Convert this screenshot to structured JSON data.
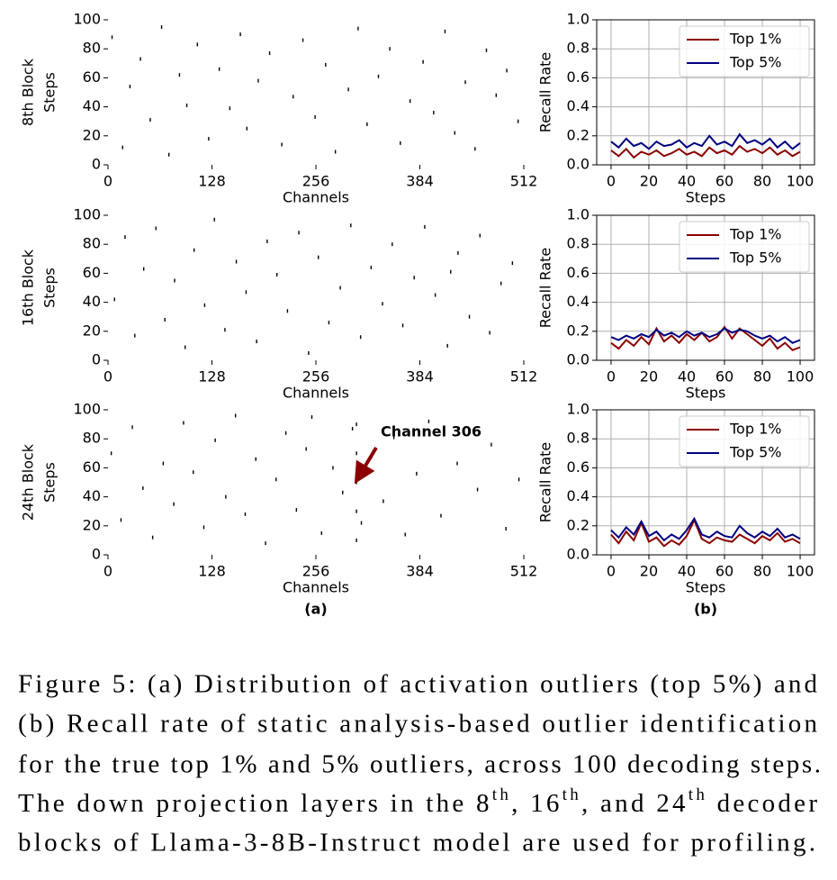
{
  "chart_data": [
    {
      "type": "scatter",
      "row_label": "8th Block",
      "ylabel": "Steps",
      "xlabel": "Channels",
      "color": "#000000",
      "x": [
        5,
        18,
        27,
        40,
        52,
        66,
        75,
        88,
        97,
        110,
        124,
        137,
        150,
        163,
        171,
        185,
        199,
        214,
        228,
        240,
        255,
        268,
        280,
        296,
        308,
        319,
        333,
        347,
        360,
        372,
        388,
        401,
        415,
        427,
        440,
        452,
        466,
        478,
        491,
        505
      ],
      "y": [
        88,
        12,
        54,
        73,
        31,
        95,
        7,
        62,
        41,
        83,
        18,
        66,
        39,
        90,
        25,
        58,
        77,
        14,
        47,
        86,
        33,
        69,
        9,
        52,
        94,
        28,
        61,
        80,
        15,
        44,
        71,
        36,
        92,
        22,
        57,
        11,
        79,
        48,
        65,
        30
      ],
      "xlim": [
        0,
        512
      ],
      "ylim": [
        0,
        100
      ],
      "xticks": [
        0,
        128,
        256,
        384,
        512
      ],
      "yticks": [
        0,
        20,
        40,
        60,
        80,
        100
      ]
    },
    {
      "type": "scatter",
      "row_label": "16th Block",
      "ylabel": "Steps",
      "xlabel": "Channels",
      "color": "#000000",
      "x": [
        8,
        21,
        33,
        44,
        59,
        70,
        82,
        95,
        106,
        119,
        131,
        144,
        158,
        170,
        183,
        196,
        208,
        221,
        235,
        247,
        259,
        272,
        286,
        299,
        311,
        324,
        338,
        350,
        363,
        377,
        390,
        403,
        418,
        422,
        431,
        445,
        458,
        470,
        484,
        498
      ],
      "y": [
        42,
        85,
        17,
        63,
        91,
        28,
        55,
        9,
        76,
        38,
        97,
        21,
        68,
        47,
        13,
        82,
        59,
        34,
        88,
        5,
        71,
        26,
        50,
        93,
        16,
        64,
        39,
        80,
        24,
        57,
        92,
        45,
        10,
        61,
        74,
        30,
        86,
        19,
        53,
        67
      ],
      "xlim": [
        0,
        512
      ],
      "ylim": [
        0,
        100
      ],
      "xticks": [
        0,
        128,
        256,
        384,
        512
      ],
      "yticks": [
        0,
        20,
        40,
        60,
        80,
        100
      ]
    },
    {
      "type": "scatter",
      "row_label": "24th Block",
      "ylabel": "Steps",
      "xlabel": "Channels",
      "color": "#000000",
      "annotation": "Channel 306",
      "panel_label": "(a)",
      "x": [
        4,
        16,
        30,
        43,
        55,
        68,
        81,
        93,
        105,
        118,
        132,
        145,
        157,
        169,
        182,
        194,
        207,
        219,
        232,
        244,
        251,
        263,
        277,
        289,
        301,
        306,
        306,
        306,
        306,
        306,
        312,
        325,
        339,
        352,
        366,
        380,
        395,
        410,
        430,
        455,
        472,
        490,
        506
      ],
      "y": [
        70,
        24,
        88,
        46,
        12,
        63,
        35,
        91,
        57,
        19,
        79,
        40,
        96,
        28,
        66,
        8,
        52,
        84,
        31,
        73,
        95,
        15,
        60,
        43,
        87,
        10,
        30,
        50,
        70,
        90,
        22,
        68,
        37,
        81,
        14,
        56,
        92,
        27,
        63,
        45,
        76,
        18,
        52
      ],
      "xlim": [
        0,
        512
      ],
      "ylim": [
        0,
        100
      ],
      "xticks": [
        0,
        128,
        256,
        384,
        512
      ],
      "yticks": [
        0,
        20,
        40,
        60,
        80,
        100
      ]
    },
    {
      "type": "line",
      "ylabel": "Recall Rate",
      "xlabel": "Steps",
      "grid": true,
      "legend": "upper right",
      "x": [
        0,
        4,
        8,
        12,
        16,
        20,
        24,
        28,
        32,
        36,
        40,
        44,
        48,
        52,
        56,
        60,
        64,
        68,
        72,
        76,
        80,
        84,
        88,
        92,
        96,
        100
      ],
      "series": [
        {
          "name": "Top 1%",
          "color": "#8b0000",
          "values": [
            0.1,
            0.06,
            0.11,
            0.05,
            0.09,
            0.07,
            0.1,
            0.06,
            0.08,
            0.11,
            0.07,
            0.09,
            0.06,
            0.12,
            0.08,
            0.1,
            0.07,
            0.13,
            0.09,
            0.11,
            0.08,
            0.12,
            0.07,
            0.1,
            0.06,
            0.09
          ]
        },
        {
          "name": "Top 5%",
          "color": "#000080",
          "values": [
            0.16,
            0.12,
            0.18,
            0.13,
            0.15,
            0.11,
            0.16,
            0.13,
            0.14,
            0.17,
            0.12,
            0.15,
            0.13,
            0.2,
            0.14,
            0.16,
            0.13,
            0.21,
            0.15,
            0.17,
            0.14,
            0.18,
            0.12,
            0.16,
            0.11,
            0.15
          ]
        }
      ],
      "xlim": [
        -7.6,
        107.6
      ],
      "ylim": [
        0,
        1
      ],
      "xticks": [
        0,
        20,
        40,
        60,
        80,
        100
      ],
      "yticks": [
        {
          "value": 0,
          "label": "0.0"
        },
        0.2,
        0.4,
        0.6,
        0.8,
        {
          "value": 1,
          "label": "1.0"
        }
      ]
    },
    {
      "type": "line",
      "ylabel": "Recall Rate",
      "xlabel": "Steps",
      "grid": true,
      "legend": "upper right",
      "x": [
        0,
        4,
        8,
        12,
        16,
        20,
        24,
        28,
        32,
        36,
        40,
        44,
        48,
        52,
        56,
        60,
        64,
        68,
        72,
        76,
        80,
        84,
        88,
        92,
        96,
        100
      ],
      "series": [
        {
          "name": "Top 1%",
          "color": "#8b0000",
          "values": [
            0.12,
            0.08,
            0.14,
            0.1,
            0.16,
            0.11,
            0.22,
            0.13,
            0.17,
            0.12,
            0.18,
            0.14,
            0.19,
            0.13,
            0.16,
            0.23,
            0.15,
            0.22,
            0.18,
            0.14,
            0.1,
            0.15,
            0.08,
            0.12,
            0.07,
            0.09
          ]
        },
        {
          "name": "Top 5%",
          "color": "#000080",
          "values": [
            0.16,
            0.14,
            0.17,
            0.15,
            0.18,
            0.16,
            0.21,
            0.17,
            0.19,
            0.16,
            0.2,
            0.17,
            0.19,
            0.16,
            0.18,
            0.22,
            0.19,
            0.21,
            0.2,
            0.17,
            0.15,
            0.17,
            0.13,
            0.16,
            0.12,
            0.14
          ]
        }
      ],
      "xlim": [
        -7.6,
        107.6
      ],
      "ylim": [
        0,
        1
      ],
      "xticks": [
        0,
        20,
        40,
        60,
        80,
        100
      ],
      "yticks": [
        {
          "value": 0,
          "label": "0.0"
        },
        0.2,
        0.4,
        0.6,
        0.8,
        {
          "value": 1,
          "label": "1.0"
        }
      ]
    },
    {
      "type": "line",
      "ylabel": "Recall Rate",
      "xlabel": "Steps",
      "grid": true,
      "legend": "upper right",
      "panel_label": "(b)",
      "x": [
        0,
        4,
        8,
        12,
        16,
        20,
        24,
        28,
        32,
        36,
        40,
        44,
        48,
        52,
        56,
        60,
        64,
        68,
        72,
        76,
        80,
        84,
        88,
        92,
        96,
        100
      ],
      "series": [
        {
          "name": "Top 1%",
          "color": "#8b0000",
          "values": [
            0.14,
            0.08,
            0.16,
            0.1,
            0.22,
            0.09,
            0.12,
            0.06,
            0.1,
            0.07,
            0.13,
            0.24,
            0.11,
            0.08,
            0.12,
            0.1,
            0.09,
            0.14,
            0.11,
            0.08,
            0.13,
            0.1,
            0.15,
            0.09,
            0.11,
            0.08
          ]
        },
        {
          "name": "Top 5%",
          "color": "#000080",
          "values": [
            0.17,
            0.12,
            0.19,
            0.14,
            0.23,
            0.13,
            0.16,
            0.1,
            0.14,
            0.11,
            0.17,
            0.25,
            0.14,
            0.12,
            0.16,
            0.13,
            0.12,
            0.2,
            0.15,
            0.12,
            0.16,
            0.13,
            0.18,
            0.12,
            0.14,
            0.11
          ]
        }
      ],
      "xlim": [
        -7.6,
        107.6
      ],
      "ylim": [
        0,
        1
      ],
      "xticks": [
        0,
        20,
        40,
        60,
        80,
        100
      ],
      "yticks": [
        {
          "value": 0,
          "label": "0.0"
        },
        0.2,
        0.4,
        0.6,
        0.8,
        {
          "value": 1,
          "label": "1.0"
        }
      ]
    }
  ],
  "caption": [
    "Figure 5: (a) Distribution of activation outliers (top 5%) and",
    "(b) Recall rate of static analysis-based outlier identification",
    "for the true top 1% and 5% outliers, across 100 decoding steps.",
    "The down projection layers in the 8",
    "th",
    ", 16",
    "th",
    ", and 24",
    "th",
    " decoder",
    "blocks of Llama-3-8B-Instruct model are used for profiling."
  ]
}
